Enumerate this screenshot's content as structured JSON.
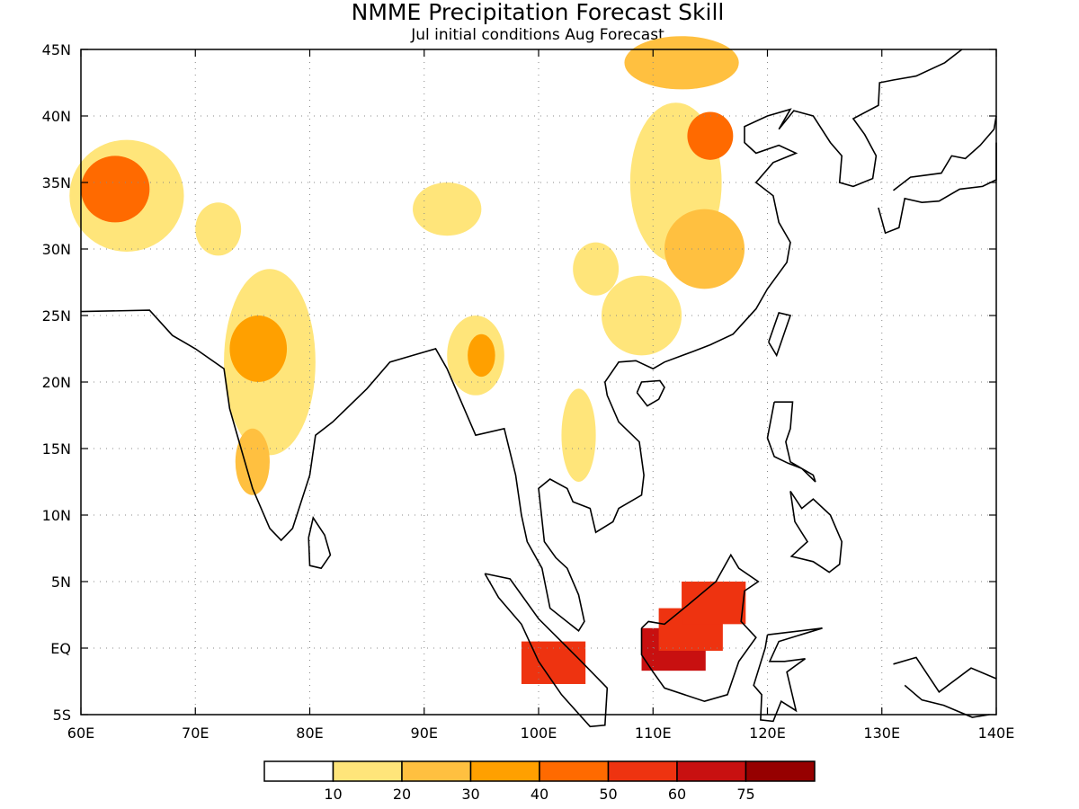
{
  "map": {
    "title": "NMME Precipitation Forecast Skill",
    "subtitle": "Jul initial conditions  Aug Forecast",
    "lon_range": [
      60,
      140
    ],
    "lat_range": [
      -5,
      45
    ],
    "lon_ticks": [
      "60E",
      "70E",
      "80E",
      "90E",
      "100E",
      "110E",
      "120E",
      "130E",
      "140E"
    ],
    "lat_ticks": [
      "5S",
      "EQ",
      "5N",
      "10N",
      "15N",
      "20N",
      "25N",
      "30N",
      "35N",
      "40N",
      "45N"
    ],
    "grid": true,
    "colorbar": {
      "labels": [
        "10",
        "20",
        "30",
        "40",
        "50",
        "60",
        "75"
      ],
      "colors": [
        "#ffffff",
        "#ffe57a",
        "#ffc040",
        "#ffa000",
        "#ff6a00",
        "#ee3310",
        "#c81010",
        "#960000"
      ]
    },
    "skill_regions": [
      {
        "lon": 64,
        "lat": 34,
        "rx": 5,
        "ry": 4.2,
        "level": 1
      },
      {
        "lon": 63,
        "lat": 34.5,
        "rx": 3,
        "ry": 2.5,
        "level": 4
      },
      {
        "lon": 72,
        "lat": 31.5,
        "rx": 2,
        "ry": 2,
        "level": 1
      },
      {
        "lon": 76.5,
        "lat": 21.5,
        "rx": 4,
        "ry": 7,
        "level": 1
      },
      {
        "lon": 75.5,
        "lat": 22.5,
        "rx": 2.5,
        "ry": 2.5,
        "level": 3
      },
      {
        "lon": 75,
        "lat": 14,
        "rx": 1.5,
        "ry": 2.5,
        "level": 2
      },
      {
        "lon": 94.5,
        "lat": 22,
        "rx": 2.5,
        "ry": 3,
        "level": 1
      },
      {
        "lon": 95,
        "lat": 22,
        "rx": 1.2,
        "ry": 1.6,
        "level": 3
      },
      {
        "lon": 112,
        "lat": 35,
        "rx": 4,
        "ry": 6,
        "level": 1
      },
      {
        "lon": 115,
        "lat": 38.5,
        "rx": 2,
        "ry": 1.8,
        "level": 4
      },
      {
        "lon": 114.5,
        "lat": 30,
        "rx": 3.5,
        "ry": 3,
        "level": 2
      },
      {
        "lon": 109,
        "lat": 25,
        "rx": 3.5,
        "ry": 3,
        "level": 1
      },
      {
        "lon": 112.5,
        "lat": 44,
        "rx": 5,
        "ry": 2,
        "level": 2
      },
      {
        "lon": 92,
        "lat": 33,
        "rx": 3,
        "ry": 2,
        "level": 1
      },
      {
        "lon": 105,
        "lat": 28.5,
        "rx": 2,
        "ry": 2,
        "level": 1
      },
      {
        "lon": 103.5,
        "lat": 16,
        "rx": 1.5,
        "ry": 3.5,
        "level": 1
      }
    ],
    "borneo_block": [
      {
        "lon": 112.5,
        "lat": -0.5,
        "level": 6
      },
      {
        "lon": 114,
        "lat": 1,
        "level": 5
      },
      {
        "lon": 116,
        "lat": 3,
        "level": 5
      }
    ],
    "sumatra_block": [
      {
        "lon": 102,
        "lat": -1.5,
        "level": 5
      }
    ]
  }
}
